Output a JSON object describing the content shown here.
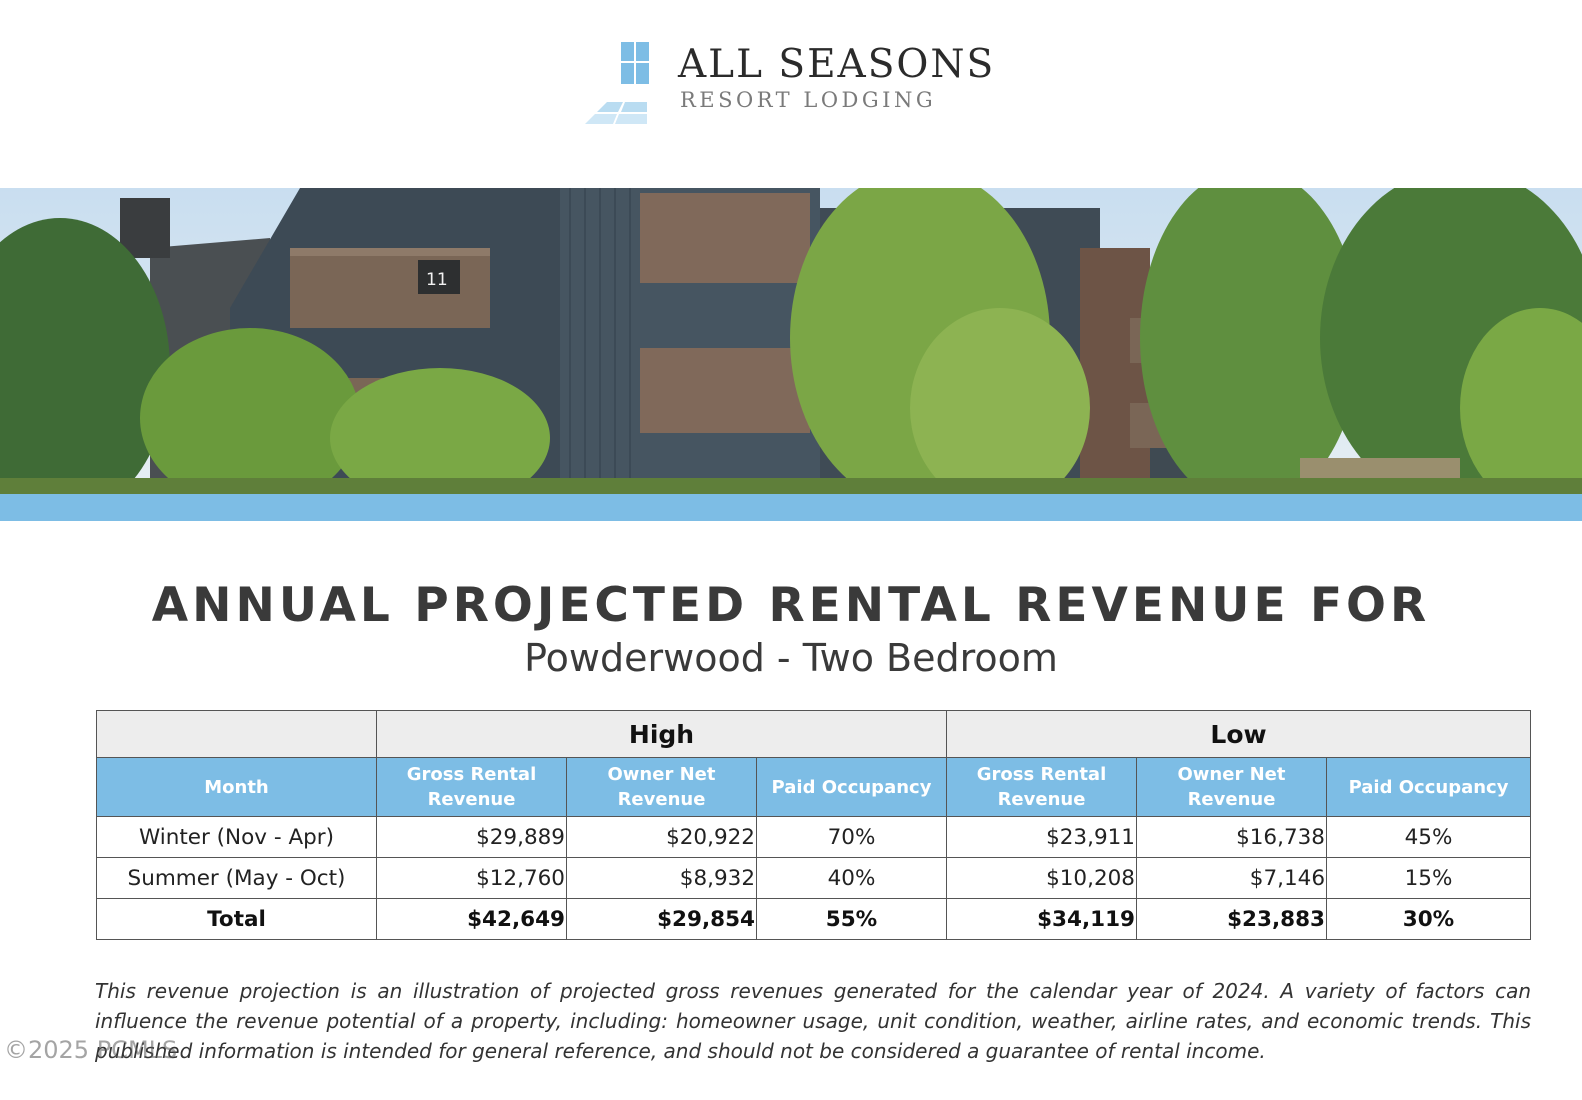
{
  "logo": {
    "title": "ALL SEASONS",
    "subtitle": "RESORT LODGING",
    "icon": "window-pane-logo-icon"
  },
  "banner": {
    "unit_sign": "11"
  },
  "heading": {
    "title": "ANNUAL PROJECTED RENTAL REVENUE FOR",
    "subtitle": "Powderwood - Two Bedroom"
  },
  "table": {
    "groups": [
      "High",
      "Low"
    ],
    "columns": {
      "month": "Month",
      "gross": "Gross Rental Revenue",
      "owner": "Owner Net Revenue",
      "occupancy": "Paid Occupancy"
    },
    "rows": [
      {
        "label": "Winter (Nov - Apr)",
        "high_gross": "$29,889",
        "high_owner": "$20,922",
        "high_occ": "70%",
        "low_gross": "$23,911",
        "low_owner": "$16,738",
        "low_occ": "45%"
      },
      {
        "label": "Summer (May - Oct)",
        "high_gross": "$12,760",
        "high_owner": "$8,932",
        "high_occ": "40%",
        "low_gross": "$10,208",
        "low_owner": "$7,146",
        "low_occ": "15%"
      },
      {
        "label": "Total",
        "high_gross": "$42,649",
        "high_owner": "$29,854",
        "high_occ": "55%",
        "low_gross": "$34,119",
        "low_owner": "$23,883",
        "low_occ": "30%"
      }
    ]
  },
  "disclaimer": "This revenue projection is an illustration of projected gross revenues generated for the calendar year of 2024. A variety of factors can influence the revenue potential of a property, including: homeowner usage, unit condition, weather, airline rates, and economic trends. This published information is intended for general reference, and should not be considered a guarantee of rental income.",
  "watermark": "©2025 PCMLS",
  "colors": {
    "accent_blue": "#7dbde5",
    "heading_text": "#3a3a3a",
    "header_gray": "#ededed"
  }
}
